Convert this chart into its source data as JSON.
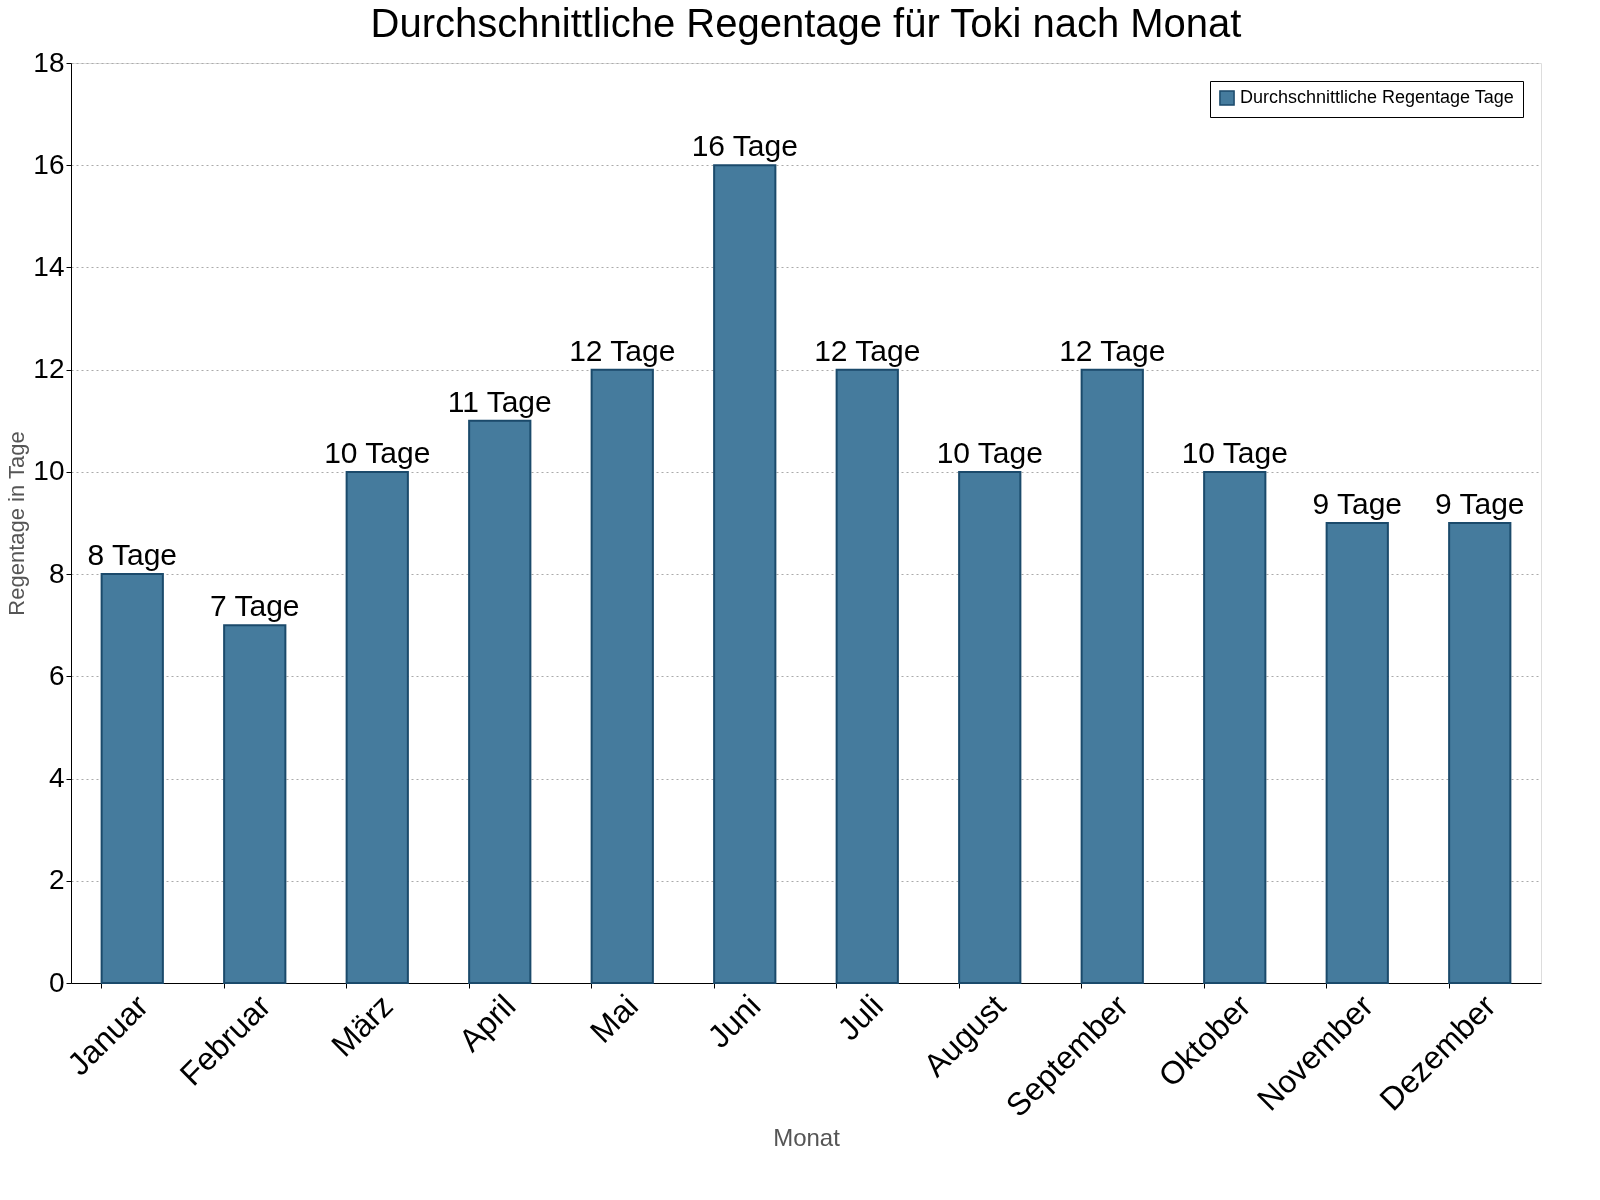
{
  "chart_data": {
    "type": "bar",
    "title": "Durchschnittliche Regentage für Toki nach Monat",
    "xlabel": "Monat",
    "ylabel": "Regentage in Tage",
    "categories": [
      "Januar",
      "Februar",
      "März",
      "April",
      "Mai",
      "Juni",
      "Juli",
      "August",
      "September",
      "Oktober",
      "November",
      "Dezember"
    ],
    "series": [
      {
        "name": "Durchschnittliche Regentage Tage",
        "color": "#457b9d",
        "values": [
          8,
          7,
          10,
          11,
          12,
          16,
          12,
          10,
          12,
          10,
          9,
          9
        ],
        "value_labels": [
          "8 Tage",
          "7 Tage",
          "10 Tage",
          "11 Tage",
          "12 Tage",
          "16 Tage",
          "12 Tage",
          "10 Tage",
          "12 Tage",
          "10 Tage",
          "9 Tage",
          "9 Tage"
        ]
      }
    ],
    "ylim": [
      0,
      18
    ],
    "yticks": [
      0,
      2,
      4,
      6,
      8,
      10,
      12,
      14,
      16,
      18
    ],
    "grid": "y",
    "legend": "top right"
  }
}
